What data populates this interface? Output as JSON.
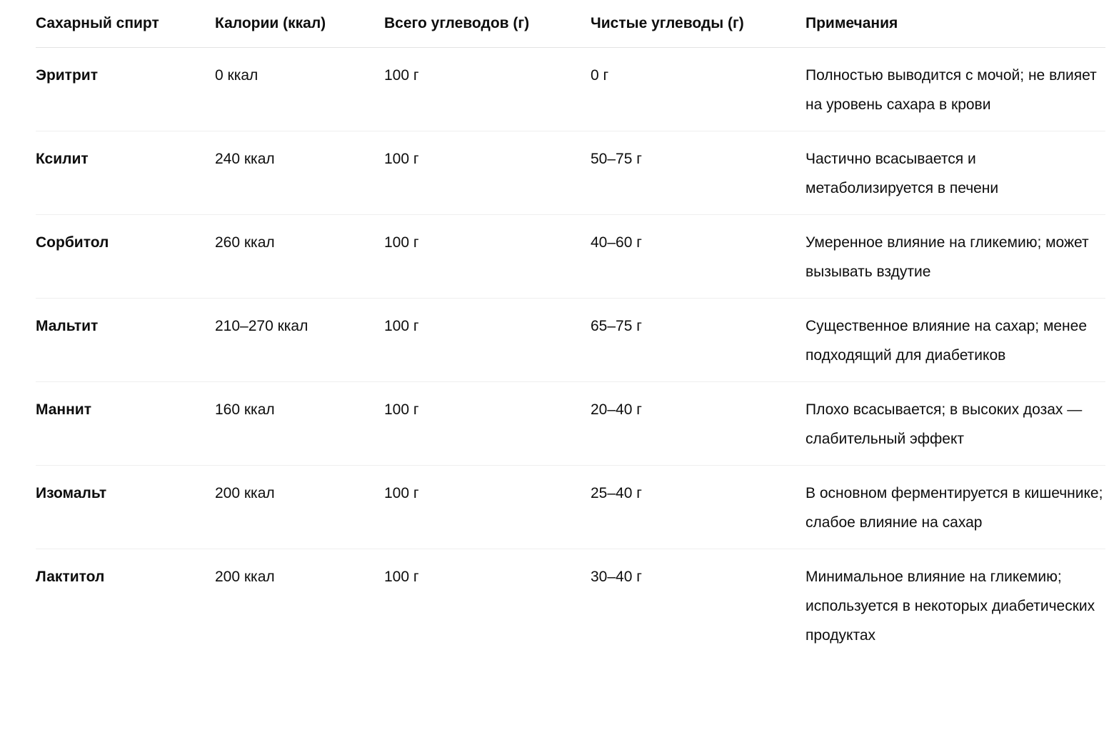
{
  "table": {
    "headers": [
      "Сахарный спирт",
      "Калории (ккал)",
      "Всего углеводов (г)",
      "Чистые углеводы (г)",
      "Примечания"
    ],
    "rows": [
      [
        "Эритрит",
        "0 ккал",
        "100 г",
        "0 г",
        "Полностью выводится с мочой; не влияет на уровень сахара в крови"
      ],
      [
        "Ксилит",
        "240 ккал",
        "100 г",
        "50–75 г",
        "Частично всасывается и метаболизируется в печени"
      ],
      [
        "Сорбитол",
        "260 ккал",
        "100 г",
        "40–60 г",
        "Умеренное влияние на гликемию; может вызывать вздутие"
      ],
      [
        "Мальтит",
        "210–270 ккал",
        "100 г",
        "65–75 г",
        "Существенное влияние на сахар; менее подходящий для диабетиков"
      ],
      [
        "Маннит",
        "160 ккал",
        "100 г",
        "20–40 г",
        "Плохо всасывается; в высоких дозах — слабительный эффект"
      ],
      [
        "Изомальт",
        "200 ккал",
        "100 г",
        "25–40 г",
        "В основном ферментируется в кишечнике; слабое влияние на сахар"
      ],
      [
        "Лактитол",
        "200 ккал",
        "100 г",
        "30–40 г",
        "Минимальное влияние на гликемию; используется в некоторых диабетических продуктах"
      ]
    ]
  }
}
